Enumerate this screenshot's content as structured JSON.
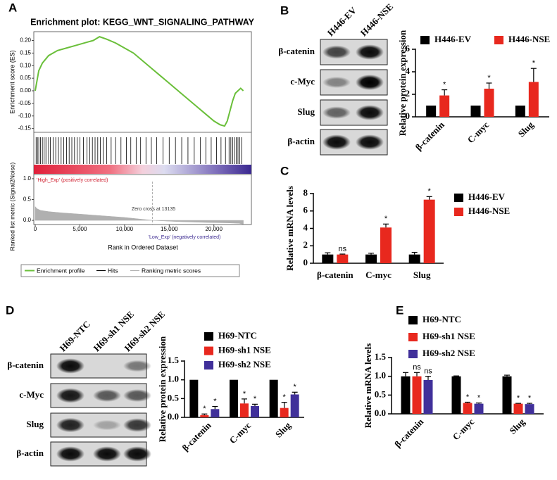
{
  "chart_data": [
    {
      "panel": "A",
      "type": "line",
      "title": "Enrichment plot: KEGG_WNT_SIGNALING_PATHWAY",
      "ylabel": "Enrichment score (ES)",
      "xlabel": "Rank in Ordered Dataset",
      "x": [
        0,
        150,
        400,
        800,
        1500,
        2500,
        3500,
        4500,
        5500,
        6500,
        7200,
        8000,
        9000,
        10000,
        11000,
        12000,
        13000,
        14000,
        15000,
        16000,
        17000,
        18000,
        19000,
        20000,
        20700,
        21200,
        21500,
        21800,
        22100,
        22400,
        22700,
        23000,
        23300
      ],
      "series": [
        {
          "name": "Enrichment profile",
          "color": "#6abf3a",
          "values": [
            0,
            0.03,
            0.08,
            0.11,
            0.14,
            0.16,
            0.17,
            0.18,
            0.19,
            0.2,
            0.215,
            0.205,
            0.19,
            0.17,
            0.15,
            0.12,
            0.09,
            0.06,
            0.03,
            0.0,
            -0.03,
            -0.06,
            -0.09,
            -0.12,
            -0.135,
            -0.14,
            -0.12,
            -0.08,
            -0.04,
            -0.01,
            0.0,
            0.01,
            0.0
          ]
        }
      ],
      "hits": {
        "name": "Hits",
        "color": "#000000",
        "x": [
          100,
          250,
          400,
          600,
          800,
          1000,
          1200,
          1500,
          1700,
          2000,
          2300,
          2600,
          2900,
          3200,
          3500,
          3800,
          4100,
          4400,
          4700,
          5000,
          5400,
          5800,
          6100,
          6400,
          6700,
          7000,
          7300,
          7600,
          8000,
          8500,
          9000,
          9600,
          10200,
          10700,
          11300,
          11800,
          12400,
          13000,
          13600,
          14300,
          15000,
          15700,
          16400,
          17100,
          17800,
          18500,
          19100,
          19700,
          20300,
          20800,
          21300,
          21700,
          21900,
          22100,
          22300,
          22500,
          22700,
          22900,
          23100
        ]
      },
      "metric": {
        "name": "Ranking metric scores",
        "color": "#b0b0b0",
        "ylabel": "Ranked list metric (Signal2Noise)",
        "x": [
          0,
          200,
          600,
          1500,
          3000,
          5000,
          7500,
          10000,
          13135,
          16000,
          19000,
          21500,
          22800,
          23300
        ],
        "values": [
          0.33,
          0.28,
          0.24,
          0.21,
          0.18,
          0.15,
          0.11,
          0.07,
          0,
          -0.03,
          -0.05,
          -0.06,
          -0.07,
          -0.09
        ],
        "ylim": [
          -0.1,
          1.1
        ],
        "yticks": [
          {
            "value": 1,
            "label": "1.0"
          },
          0.5,
          {
            "value": 0,
            "label": "0.0"
          }
        ]
      },
      "zero_cross": 13135,
      "annotations": [
        "'High_Exp' (positively correlated)",
        "Zero cross at 13135",
        "'Low_Exp' (negatively correlated)"
      ],
      "xlim": [
        0,
        24200
      ],
      "xticks": [
        0,
        {
          "value": 5000,
          "label": "5,000"
        },
        {
          "value": 10000,
          "label": "10,000"
        },
        {
          "value": 15000,
          "label": "15,000"
        },
        {
          "value": 20000,
          "label": "20,000"
        }
      ],
      "ylim": [
        -0.165,
        0.235
      ],
      "yticks": [
        {
          "value": 0.2,
          "label": "0.20"
        },
        0.15,
        {
          "value": 0.1,
          "label": "0.10"
        },
        0.05,
        {
          "value": 0,
          "label": "0.00"
        },
        -0.05,
        {
          "value": -0.1,
          "label": "-0.10"
        },
        -0.15
      ]
    },
    {
      "panel": "B",
      "type": "bar",
      "blot": {
        "lanes": [
          "H446-EV",
          "H446-NSE"
        ],
        "rows": [
          "β-catenin",
          "c-Myc",
          "Slug",
          "β-actin"
        ]
      },
      "ylabel": "Relative protein expression",
      "categories": [
        "β-catenin",
        "C-myc",
        "Slug"
      ],
      "series": [
        {
          "name": "H446-EV",
          "color": "#000000",
          "values": [
            1,
            1,
            1
          ],
          "errors": [
            0,
            0,
            0
          ],
          "annotations": [
            null,
            null,
            null
          ]
        },
        {
          "name": "H446-NSE",
          "color": "#e8281e",
          "values": [
            1.9,
            2.5,
            3.1
          ],
          "errors": [
            0.5,
            0.5,
            1.2
          ],
          "annotations": [
            "*",
            "*",
            "*"
          ]
        }
      ],
      "ylim": [
        0,
        6
      ],
      "yticks": [
        0,
        2,
        4,
        6
      ]
    },
    {
      "panel": "C",
      "type": "bar",
      "ylabel": "Relative mRNA levels",
      "categories": [
        "β-catenin",
        "C-myc",
        "Slug"
      ],
      "series": [
        {
          "name": "H446-EV",
          "color": "#000000",
          "values": [
            1,
            1,
            1
          ],
          "errors": [
            0.2,
            0.15,
            0.25
          ],
          "annotations": [
            null,
            null,
            null
          ]
        },
        {
          "name": "H446-NSE",
          "color": "#e8281e",
          "values": [
            1.0,
            4.1,
            7.3
          ],
          "errors": [
            0.05,
            0.4,
            0.35
          ],
          "annotations": [
            "ns",
            "*",
            "*"
          ]
        }
      ],
      "ylim": [
        0,
        8
      ],
      "yticks": [
        0,
        2,
        4,
        6,
        8
      ]
    },
    {
      "panel": "D",
      "type": "bar",
      "blot": {
        "lanes": [
          "H69-NTC",
          "H69-sh1 NSE",
          "H69-sh2 NSE"
        ],
        "rows": [
          "β-catenin",
          "c-Myc",
          "Slug",
          "β-actin"
        ]
      },
      "ylabel": "Relative protein expression",
      "categories": [
        "β-catenin",
        "C-myc",
        "Slug"
      ],
      "series": [
        {
          "name": "H69-NTC",
          "color": "#000000",
          "values": [
            1,
            1,
            1
          ],
          "errors": [
            0,
            0,
            0
          ],
          "annotations": [
            null,
            null,
            null
          ]
        },
        {
          "name": "H69-sh1 NSE",
          "color": "#e8281e",
          "values": [
            0.06,
            0.37,
            0.25
          ],
          "errors": [
            0.03,
            0.12,
            0.15
          ],
          "annotations": [
            "*",
            "*",
            "*"
          ]
        },
        {
          "name": "H69-sh2 NSE",
          "color": "#40309a",
          "values": [
            0.22,
            0.3,
            0.61
          ],
          "errors": [
            0.07,
            0.05,
            0.06
          ],
          "annotations": [
            "*",
            "*",
            "*"
          ]
        }
      ],
      "ylim": [
        0,
        1.5
      ],
      "yticks": [
        {
          "value": 0,
          "label": "0.0"
        },
        0.5,
        {
          "value": 1,
          "label": "1.0"
        },
        1.5
      ]
    },
    {
      "panel": "E",
      "type": "bar",
      "ylabel": "Relative mRNA levels",
      "categories": [
        "β-catenin",
        "C-myc",
        "Slug"
      ],
      "series": [
        {
          "name": "H69-NTC",
          "color": "#000000",
          "values": [
            1.0,
            1.0,
            1.0
          ],
          "errors": [
            0.1,
            0.01,
            0.03
          ],
          "annotations": [
            null,
            null,
            null
          ]
        },
        {
          "name": "H69-sh1 NSE",
          "color": "#e8281e",
          "values": [
            1.0,
            0.29,
            0.27
          ],
          "errors": [
            0.1,
            0.02,
            0.01
          ],
          "annotations": [
            "ns",
            "*",
            "*"
          ]
        },
        {
          "name": "H69-sh2 NSE",
          "color": "#40309a",
          "values": [
            0.9,
            0.27,
            0.26
          ],
          "errors": [
            0.1,
            0.02,
            0.02
          ],
          "annotations": [
            "ns",
            "*",
            "*"
          ]
        }
      ],
      "ylim": [
        0,
        1.5
      ],
      "yticks": [
        {
          "value": 0,
          "label": "0.0"
        },
        0.5,
        {
          "value": 1,
          "label": "1.0"
        },
        1.5
      ]
    }
  ]
}
